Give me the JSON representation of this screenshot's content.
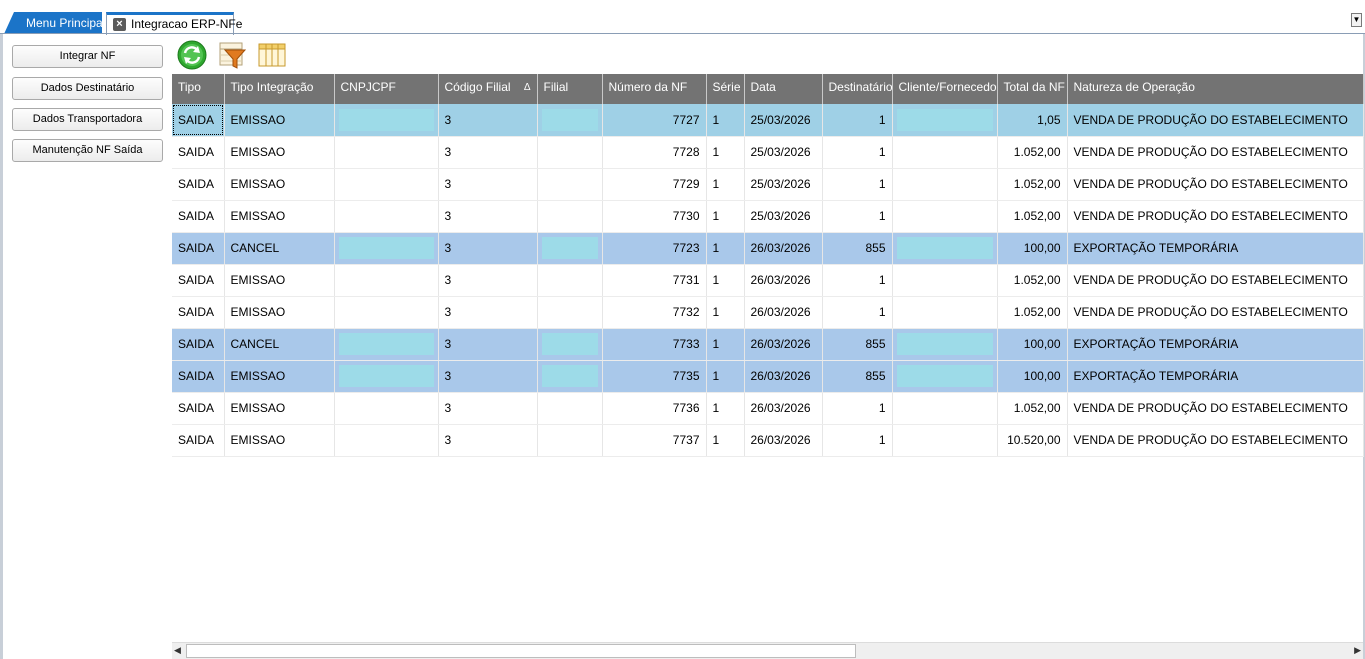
{
  "tabs": {
    "main_label": "Menu Principal",
    "active_label": "Integracao ERP-NFe"
  },
  "side_buttons": {
    "integrar": "Integrar NF",
    "destinatario": "Dados Destinatário",
    "transportadora": "Dados Transportadora",
    "manutencao": "Manutenção NF Saída"
  },
  "toolbar": {
    "icons": [
      "refresh-icon",
      "filter-icon",
      "columns-icon"
    ]
  },
  "grid": {
    "columns": [
      "Tipo",
      "Tipo Integração",
      "CNPJCPF",
      "Código Filial",
      "Filial",
      "Número da NF",
      "Série",
      "Data",
      "Destinatário",
      "Cliente/Fornecedor",
      "Total da NF",
      "Natureza de Operação"
    ],
    "sort_indicator": "Δ",
    "rows": [
      {
        "tipo": "SAIDA",
        "tipo_integracao": "EMISSAO",
        "codigo_filial": "3",
        "numero_nf": "7727",
        "serie": "1",
        "data": "25/03/2026",
        "destinatario": "1",
        "total_nf": "1,05",
        "natureza": "VENDA DE PRODUÇÃO DO ESTABELECIMENTO",
        "style": "sel",
        "masked": true
      },
      {
        "tipo": "SAIDA",
        "tipo_integracao": "EMISSAO",
        "codigo_filial": "3",
        "numero_nf": "7728",
        "serie": "1",
        "data": "25/03/2026",
        "destinatario": "1",
        "total_nf": "1.052,00",
        "natureza": "VENDA DE PRODUÇÃO DO ESTABELECIMENTO",
        "style": "",
        "masked": false
      },
      {
        "tipo": "SAIDA",
        "tipo_integracao": "EMISSAO",
        "codigo_filial": "3",
        "numero_nf": "7729",
        "serie": "1",
        "data": "25/03/2026",
        "destinatario": "1",
        "total_nf": "1.052,00",
        "natureza": "VENDA DE PRODUÇÃO DO ESTABELECIMENTO",
        "style": "",
        "masked": false
      },
      {
        "tipo": "SAIDA",
        "tipo_integracao": "EMISSAO",
        "codigo_filial": "3",
        "numero_nf": "7730",
        "serie": "1",
        "data": "25/03/2026",
        "destinatario": "1",
        "total_nf": "1.052,00",
        "natureza": "VENDA DE PRODUÇÃO DO ESTABELECIMENTO",
        "style": "",
        "masked": false
      },
      {
        "tipo": "SAIDA",
        "tipo_integracao": "CANCEL",
        "codigo_filial": "3",
        "numero_nf": "7723",
        "serie": "1",
        "data": "26/03/2026",
        "destinatario": "855",
        "total_nf": "100,00",
        "natureza": "EXPORTAÇÃO TEMPORÁRIA",
        "style": "hl",
        "masked": true
      },
      {
        "tipo": "SAIDA",
        "tipo_integracao": "EMISSAO",
        "codigo_filial": "3",
        "numero_nf": "7731",
        "serie": "1",
        "data": "26/03/2026",
        "destinatario": "1",
        "total_nf": "1.052,00",
        "natureza": "VENDA DE PRODUÇÃO DO ESTABELECIMENTO",
        "style": "",
        "masked": false
      },
      {
        "tipo": "SAIDA",
        "tipo_integracao": "EMISSAO",
        "codigo_filial": "3",
        "numero_nf": "7732",
        "serie": "1",
        "data": "26/03/2026",
        "destinatario": "1",
        "total_nf": "1.052,00",
        "natureza": "VENDA DE PRODUÇÃO DO ESTABELECIMENTO",
        "style": "",
        "masked": false
      },
      {
        "tipo": "SAIDA",
        "tipo_integracao": "CANCEL",
        "codigo_filial": "3",
        "numero_nf": "7733",
        "serie": "1",
        "data": "26/03/2026",
        "destinatario": "855",
        "total_nf": "100,00",
        "natureza": "EXPORTAÇÃO TEMPORÁRIA",
        "style": "hl",
        "masked": true
      },
      {
        "tipo": "SAIDA",
        "tipo_integracao": "EMISSAO",
        "codigo_filial": "3",
        "numero_nf": "7735",
        "serie": "1",
        "data": "26/03/2026",
        "destinatario": "855",
        "total_nf": "100,00",
        "natureza": "EXPORTAÇÃO TEMPORÁRIA",
        "style": "hl",
        "masked": true
      },
      {
        "tipo": "SAIDA",
        "tipo_integracao": "EMISSAO",
        "codigo_filial": "3",
        "numero_nf": "7736",
        "serie": "1",
        "data": "26/03/2026",
        "destinatario": "1",
        "total_nf": "1.052,00",
        "natureza": "VENDA DE PRODUÇÃO DO ESTABELECIMENTO",
        "style": "",
        "masked": false
      },
      {
        "tipo": "SAIDA",
        "tipo_integracao": "EMISSAO",
        "codigo_filial": "3",
        "numero_nf": "7737",
        "serie": "1",
        "data": "26/03/2026",
        "destinatario": "1",
        "total_nf": "10.520,00",
        "natureza": "VENDA DE PRODUÇÃO DO ESTABELECIMENTO",
        "style": "",
        "masked": false
      }
    ]
  },
  "colors": {
    "tab_blue": "#1b74c8",
    "header_gray": "#737373",
    "row_highlight": "#a9c8ea",
    "row_selected": "#9fd0e6",
    "redaction": "#9ddbe8"
  }
}
